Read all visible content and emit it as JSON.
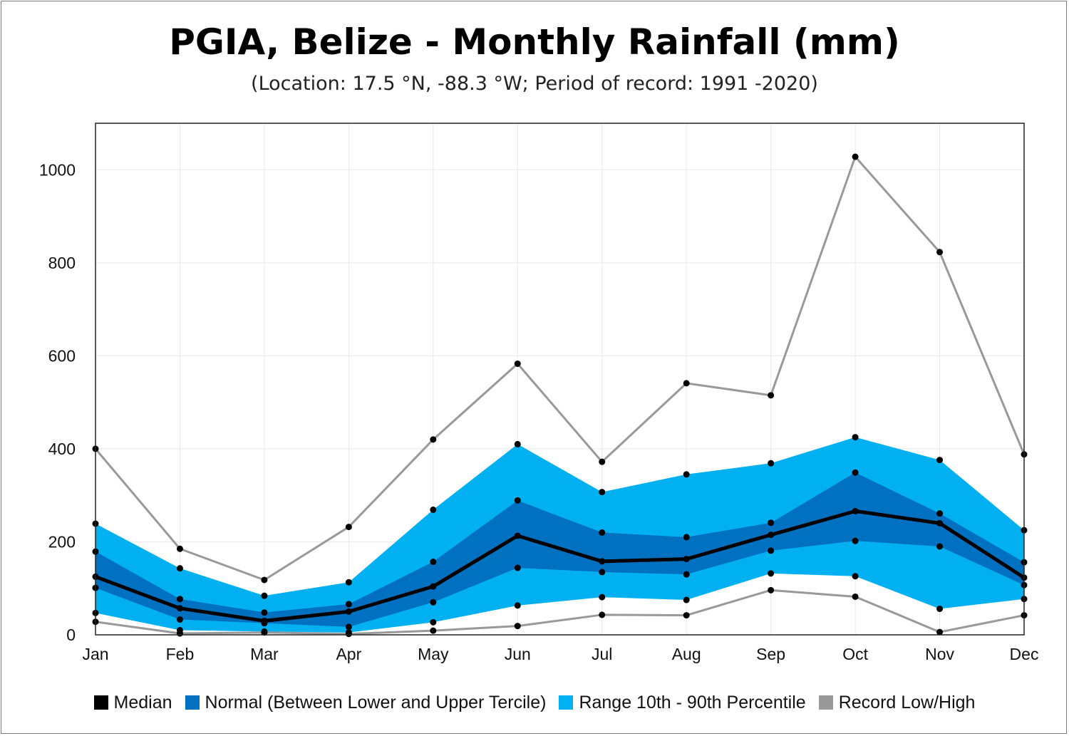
{
  "title": "PGIA, Belize - Monthly Rainfall (mm)",
  "subtitle": "(Location: 17.5 °N, -88.3 °W; Period of record: 1991 -2020)",
  "colors": {
    "median": "#000000",
    "normal": "#0070c0",
    "range": "#00b0f0",
    "record": "#999999"
  },
  "legend": [
    {
      "label": "Median",
      "color": "#000000"
    },
    {
      "label": "Normal (Between Lower and Upper Tercile)",
      "color": "#0070c0"
    },
    {
      "label": "Range 10th - 90th Percentile",
      "color": "#00b0f0"
    },
    {
      "label": "Record Low/High",
      "color": "#999999"
    }
  ],
  "chart_data": {
    "type": "area",
    "categories": [
      "Jan",
      "Feb",
      "Mar",
      "Apr",
      "May",
      "Jun",
      "Jul",
      "Aug",
      "Sep",
      "Oct",
      "Nov",
      "Dec"
    ],
    "ylim": [
      0,
      1100
    ],
    "yticks": [
      0,
      200,
      400,
      600,
      800,
      1000
    ],
    "grid": true,
    "legend_position": "bottom",
    "series": [
      {
        "name": "Record Low/High",
        "key": "record_high",
        "values": [
          400,
          185,
          118,
          232,
          420,
          583,
          372,
          541,
          515,
          1028,
          823,
          388
        ]
      },
      {
        "name": "Range 10th - 90th Percentile",
        "key": "p90",
        "values": [
          239,
          143,
          84,
          113,
          269,
          410,
          307,
          345,
          369,
          425,
          376,
          225
        ]
      },
      {
        "name": "Normal (Between Lower and Upper Tercile)",
        "key": "upper_tercile",
        "values": [
          179,
          77,
          48,
          66,
          157,
          289,
          220,
          210,
          241,
          349,
          261,
          156
        ]
      },
      {
        "name": "Median",
        "key": "median",
        "values": [
          125,
          57,
          30,
          50,
          104,
          213,
          158,
          163,
          215,
          266,
          240,
          123
        ]
      },
      {
        "name": "Normal (Between Lower and Upper Tercile)",
        "key": "lower_tercile",
        "values": [
          101,
          33,
          25,
          17,
          70,
          144,
          135,
          130,
          181,
          202,
          190,
          107
        ]
      },
      {
        "name": "Range 10th - 90th Percentile",
        "key": "p10",
        "values": [
          47,
          10,
          7,
          5,
          27,
          63,
          81,
          75,
          132,
          126,
          56,
          77
        ]
      },
      {
        "name": "Record Low/High",
        "key": "record_low",
        "values": [
          28,
          3,
          5,
          2,
          9,
          19,
          43,
          42,
          96,
          82,
          6,
          42
        ]
      }
    ]
  }
}
